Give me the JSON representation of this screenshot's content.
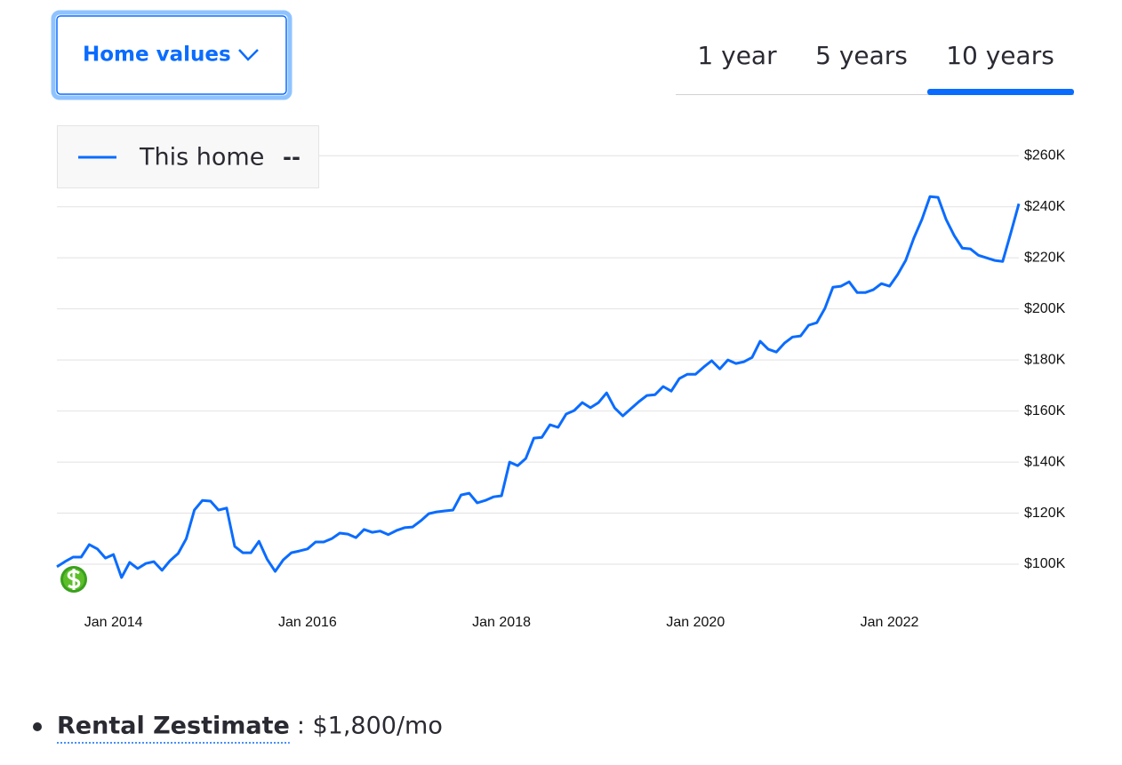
{
  "dropdown": {
    "label": "Home values"
  },
  "tabs": {
    "items": [
      "1 year",
      "5 years",
      "10 years"
    ],
    "selected": 2
  },
  "chart_data": {
    "type": "line",
    "x": [
      "2013-06",
      "2013-07",
      "2013-08",
      "2013-09",
      "2013-10",
      "2013-11",
      "2013-12",
      "2014-01",
      "2014-02",
      "2014-03",
      "2014-04",
      "2014-05",
      "2014-06",
      "2014-07",
      "2014-08",
      "2014-09",
      "2014-10",
      "2014-11",
      "2014-12",
      "2015-01",
      "2015-02",
      "2015-03",
      "2015-04",
      "2015-05",
      "2015-06",
      "2015-07",
      "2015-08",
      "2015-09",
      "2015-10",
      "2015-11",
      "2015-12",
      "2016-01",
      "2016-02",
      "2016-03",
      "2016-04",
      "2016-05",
      "2016-06",
      "2016-07",
      "2016-08",
      "2016-09",
      "2016-10",
      "2016-11",
      "2016-12",
      "2017-01",
      "2017-02",
      "2017-03",
      "2017-04",
      "2017-05",
      "2017-06",
      "2017-07",
      "2017-08",
      "2017-09",
      "2017-10",
      "2017-11",
      "2017-12",
      "2018-01",
      "2018-02",
      "2018-03",
      "2018-04",
      "2018-05",
      "2018-06",
      "2018-07",
      "2018-08",
      "2018-09",
      "2018-10",
      "2018-11",
      "2018-12",
      "2019-01",
      "2019-02",
      "2019-03",
      "2019-04",
      "2019-05",
      "2019-06",
      "2019-07",
      "2019-08",
      "2019-09",
      "2019-10",
      "2019-11",
      "2019-12",
      "2020-01",
      "2020-02",
      "2020-03",
      "2020-04",
      "2020-05",
      "2020-06",
      "2020-07",
      "2020-08",
      "2020-09",
      "2020-10",
      "2020-11",
      "2020-12",
      "2021-01",
      "2021-02",
      "2021-03",
      "2021-04",
      "2021-05",
      "2021-06",
      "2021-07",
      "2021-08",
      "2021-09",
      "2021-10",
      "2021-11",
      "2021-12",
      "2022-01",
      "2022-02",
      "2022-03",
      "2022-04",
      "2022-05",
      "2022-06",
      "2022-07",
      "2022-08",
      "2022-09",
      "2022-10",
      "2022-11",
      "2022-12",
      "2023-01",
      "2023-02",
      "2023-03",
      "2023-04",
      "2023-05"
    ],
    "series": [
      {
        "name": "This home",
        "color": "#0a6cff",
        "values": [
          99000,
          101000,
          102800,
          102800,
          107700,
          106000,
          102400,
          103800,
          94800,
          100700,
          98300,
          100300,
          101000,
          97600,
          101400,
          104200,
          110000,
          121200,
          125000,
          124700,
          121200,
          122000,
          107000,
          104500,
          104500,
          109000,
          102000,
          97200,
          101700,
          104500,
          105200,
          106000,
          108700,
          108700,
          110000,
          112200,
          111800,
          110400,
          113600,
          112500,
          113000,
          111600,
          113200,
          114300,
          114600,
          117000,
          119800,
          120500,
          120900,
          121200,
          127100,
          127800,
          124000,
          125000,
          126400,
          126800,
          140000,
          138600,
          141400,
          149400,
          149700,
          154600,
          153600,
          158800,
          160200,
          163300,
          161300,
          163300,
          167100,
          161200,
          158100,
          160900,
          163700,
          166100,
          166400,
          169600,
          167800,
          172700,
          174400,
          174400,
          177200,
          179700,
          176500,
          180000,
          178600,
          179300,
          181000,
          187300,
          184200,
          183100,
          186600,
          189000,
          189400,
          193600,
          194600,
          200200,
          208500,
          208900,
          210600,
          206400,
          206400,
          207500,
          209900,
          208900,
          213400,
          219000,
          227700,
          235000,
          244000,
          243700,
          235000,
          228700,
          223800,
          223500,
          221000,
          220000,
          219000,
          218600,
          229700,
          241200
        ]
      }
    ],
    "legend_value": "--",
    "xlim": [
      "2013-06",
      "2023-05"
    ],
    "xticks": [
      {
        "value": "2014-01",
        "label": "Jan 2014"
      },
      {
        "value": "2016-01",
        "label": "Jan 2016"
      },
      {
        "value": "2018-01",
        "label": "Jan 2018"
      },
      {
        "value": "2020-01",
        "label": "Jan 2020"
      },
      {
        "value": "2022-01",
        "label": "Jan 2022"
      }
    ],
    "ylim": [
      88000,
      270000
    ],
    "yticks": [
      {
        "value": 100000,
        "label": "$100K"
      },
      {
        "value": 120000,
        "label": "$120K"
      },
      {
        "value": 140000,
        "label": "$140K"
      },
      {
        "value": 160000,
        "label": "$160K"
      },
      {
        "value": 180000,
        "label": "$180K"
      },
      {
        "value": 200000,
        "label": "$200K"
      },
      {
        "value": 220000,
        "label": "$220K"
      },
      {
        "value": 240000,
        "label": "$240K"
      },
      {
        "value": 260000,
        "label": "$260K"
      }
    ],
    "grid": true
  },
  "rental": {
    "label": "Rental Zestimate",
    "text": ": $1,800/mo"
  }
}
